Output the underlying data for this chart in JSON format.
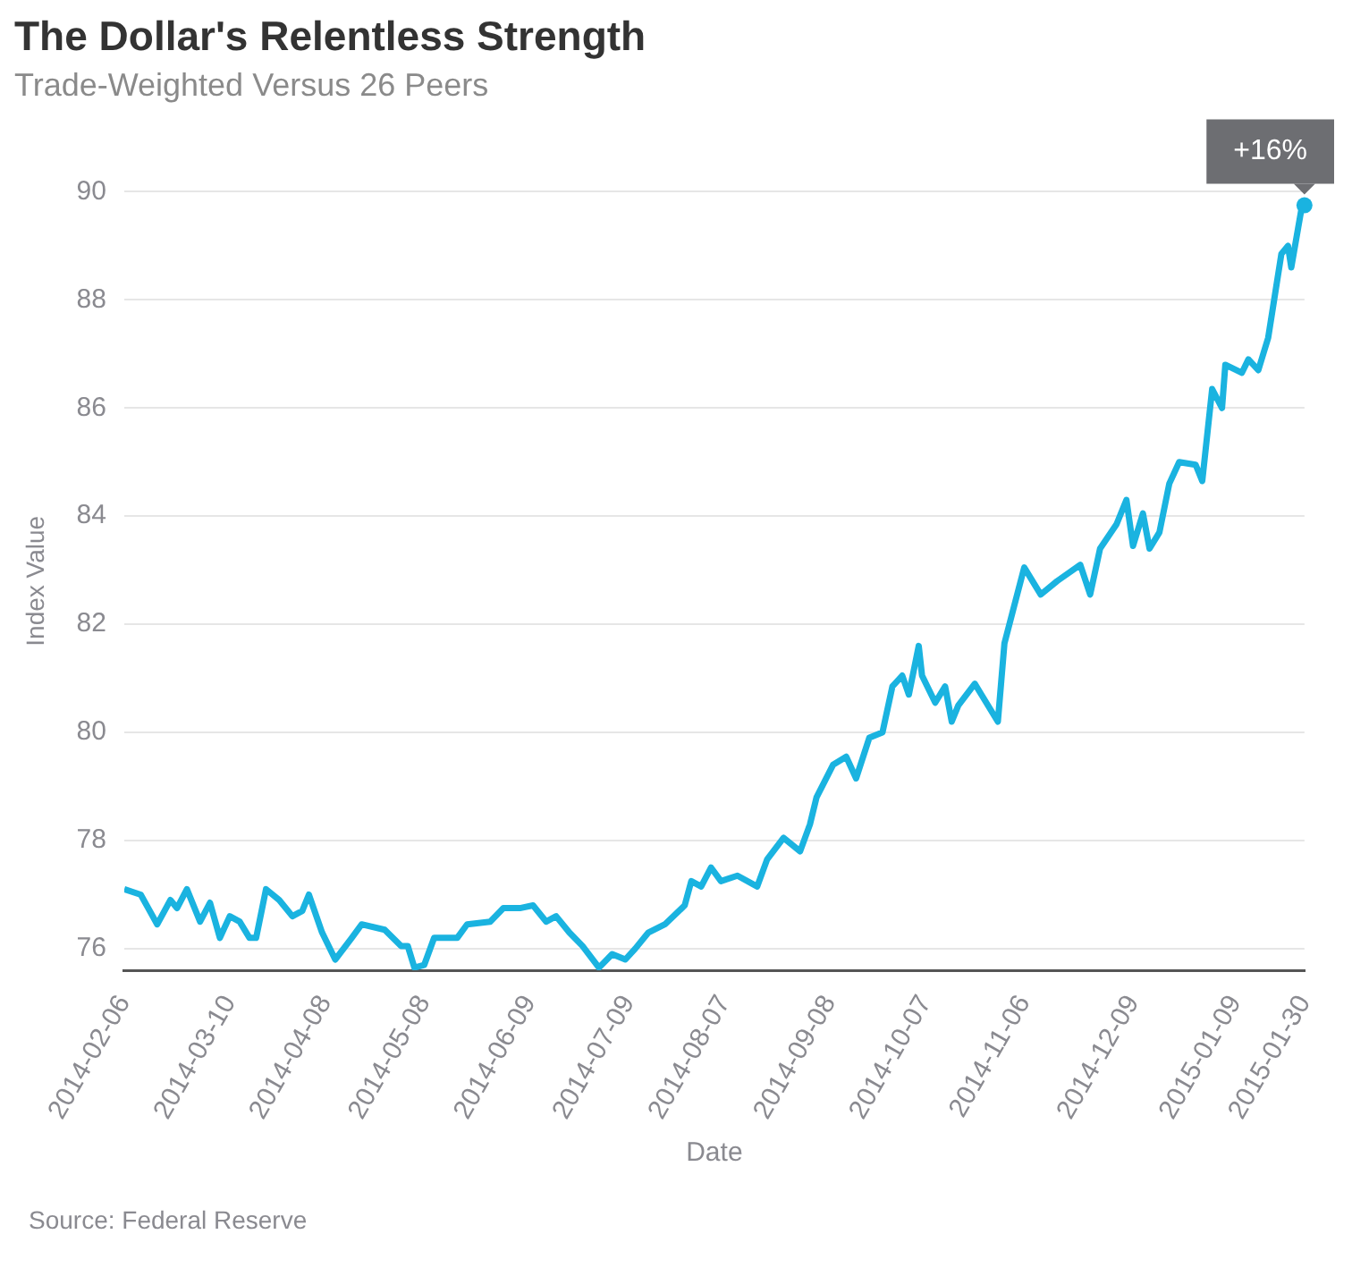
{
  "chart_data": {
    "type": "line",
    "title": "The Dollar's Relentless Strength",
    "subtitle": "Trade-Weighted Versus 26 Peers",
    "xlabel": "Date",
    "ylabel": "Index Value",
    "x": [
      "2014-02-06",
      "2014-02-11",
      "2014-02-16",
      "2014-02-20",
      "2014-02-22",
      "2014-02-25",
      "2014-03-01",
      "2014-03-04",
      "2014-03-07",
      "2014-03-10",
      "2014-03-13",
      "2014-03-16",
      "2014-03-18",
      "2014-03-21",
      "2014-03-25",
      "2014-03-29",
      "2014-04-01",
      "2014-04-03",
      "2014-04-07",
      "2014-04-11",
      "2014-04-16",
      "2014-04-19",
      "2014-04-26",
      "2014-05-01",
      "2014-05-03",
      "2014-05-05",
      "2014-05-08",
      "2014-05-11",
      "2014-05-18",
      "2014-05-21",
      "2014-05-28",
      "2014-06-01",
      "2014-06-06",
      "2014-06-10",
      "2014-06-14",
      "2014-06-17",
      "2014-06-21",
      "2014-06-25",
      "2014-06-30",
      "2014-07-04",
      "2014-07-08",
      "2014-07-11",
      "2014-07-15",
      "2014-07-20",
      "2014-07-26",
      "2014-07-28",
      "2014-07-31",
      "2014-08-03",
      "2014-08-06",
      "2014-08-11",
      "2014-08-17",
      "2014-08-20",
      "2014-08-25",
      "2014-08-30",
      "2014-09-02",
      "2014-09-04",
      "2014-09-09",
      "2014-09-13",
      "2014-09-16",
      "2014-09-20",
      "2014-09-24",
      "2014-09-27",
      "2014-09-30",
      "2014-10-02",
      "2014-10-05",
      "2014-10-06",
      "2014-10-10",
      "2014-10-13",
      "2014-10-15",
      "2014-10-17",
      "2014-10-22",
      "2014-10-24",
      "2014-10-29",
      "2014-10-31",
      "2014-11-03",
      "2014-11-06",
      "2014-11-11",
      "2014-11-16",
      "2014-11-23",
      "2014-11-26",
      "2014-11-29",
      "2014-12-04",
      "2014-12-07",
      "2014-12-09",
      "2014-12-12",
      "2014-12-14",
      "2014-12-17",
      "2014-12-20",
      "2014-12-23",
      "2014-12-28",
      "2014-12-30",
      "2015-01-02",
      "2015-01-05",
      "2015-01-06",
      "2015-01-11",
      "2015-01-13",
      "2015-01-16",
      "2015-01-19",
      "2015-01-23",
      "2015-01-25",
      "2015-01-26",
      "2015-01-29",
      "2015-01-30"
    ],
    "series": [
      {
        "color": "#1ab3e0",
        "values": [
          77.1,
          77.0,
          76.45,
          76.9,
          76.75,
          77.1,
          76.5,
          76.85,
          76.2,
          76.6,
          76.5,
          76.2,
          76.2,
          77.1,
          76.9,
          76.6,
          76.7,
          77.0,
          76.3,
          75.8,
          76.2,
          76.45,
          76.35,
          76.05,
          76.05,
          75.65,
          75.7,
          76.2,
          76.2,
          76.45,
          76.5,
          76.75,
          76.75,
          76.8,
          76.5,
          76.6,
          76.3,
          76.05,
          75.65,
          75.9,
          75.8,
          76.0,
          76.3,
          76.45,
          76.8,
          77.25,
          77.15,
          77.5,
          77.25,
          77.35,
          77.15,
          77.65,
          78.05,
          77.8,
          78.3,
          78.8,
          79.4,
          79.55,
          79.15,
          79.9,
          80.0,
          80.85,
          81.05,
          80.7,
          81.6,
          81.05,
          80.55,
          80.85,
          80.2,
          80.5,
          80.9,
          80.7,
          80.2,
          81.65,
          82.35,
          83.05,
          82.55,
          82.8,
          83.1,
          82.55,
          83.4,
          83.85,
          84.3,
          83.45,
          84.05,
          83.4,
          83.7,
          84.6,
          85.0,
          84.95,
          84.65,
          86.35,
          86.0,
          86.8,
          86.65,
          86.9,
          86.7,
          87.3,
          88.85,
          89.0,
          88.6,
          89.65,
          89.75
        ]
      }
    ],
    "xlim": [
      "2014-02-06",
      "2015-01-30"
    ],
    "xticks": [
      "2014-02-06",
      "2014-03-10",
      "2014-04-08",
      "2014-05-08",
      "2014-06-09",
      "2014-07-09",
      "2014-08-07",
      "2014-09-08",
      "2014-10-07",
      "2014-11-06",
      "2014-12-09",
      "2015-01-09",
      "2015-01-30"
    ],
    "ylim": [
      75.6,
      90
    ],
    "yticks": [
      76,
      78,
      80,
      82,
      84,
      86,
      88,
      90
    ],
    "grid": "y",
    "legend": false,
    "marker": "none",
    "line_style": "solid",
    "annotations": [
      {
        "text": "+16%",
        "x": "2015-01-30",
        "y": 89.75
      },
      "Source: Federal Reserve"
    ]
  }
}
